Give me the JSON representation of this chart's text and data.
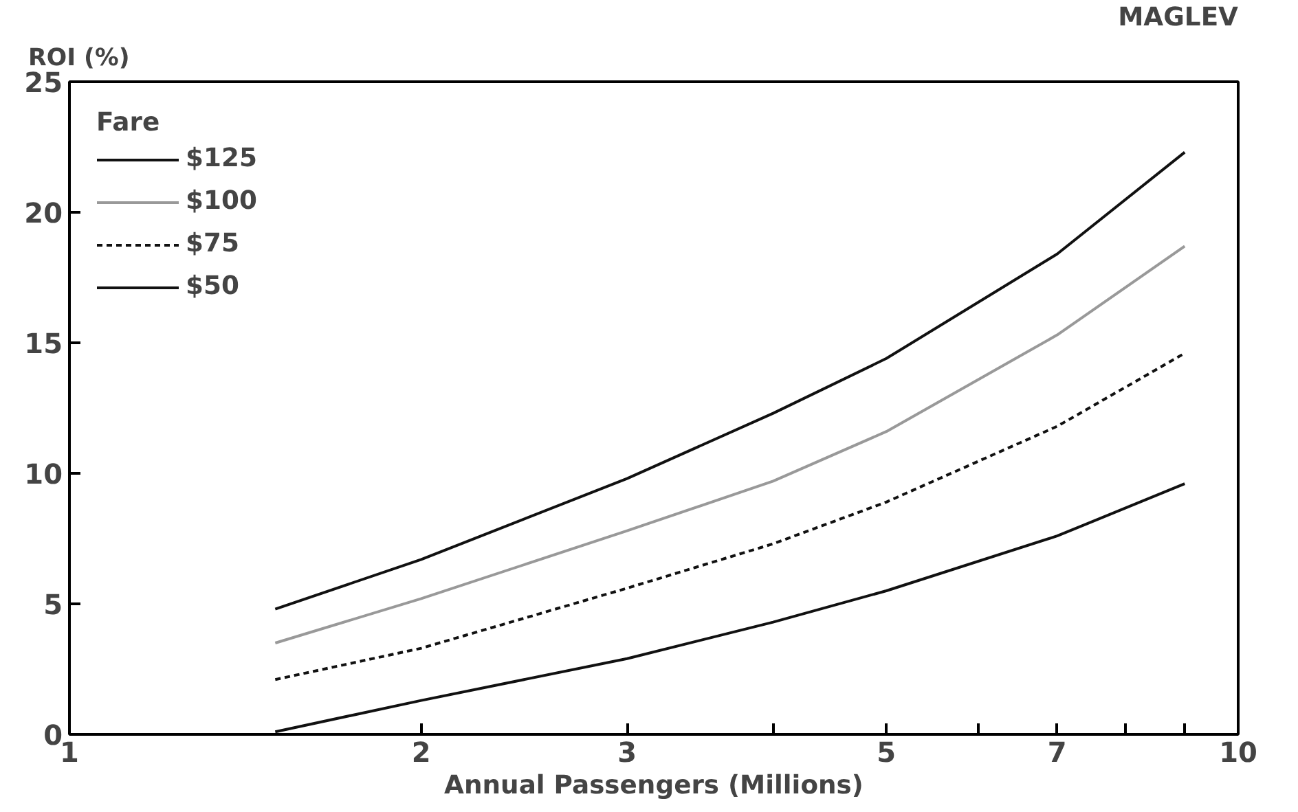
{
  "chart_data": {
    "type": "line",
    "title": "MAGLEV",
    "ylabel": "ROI (%)",
    "xlabel": "Annual Passengers (Millions)",
    "legend_title": "Fare",
    "legend": "top left",
    "grid": false,
    "log": "x",
    "x": [
      1.5,
      2,
      3,
      4,
      5,
      7,
      9
    ],
    "xlim": [
      1,
      10
    ],
    "xticks": [
      1,
      2,
      3,
      {
        "value": 4,
        "label": null
      },
      5,
      {
        "value": 6,
        "label": null
      },
      7,
      {
        "value": 8,
        "label": null
      },
      {
        "value": 9,
        "label": null
      },
      10
    ],
    "ylim": [
      0,
      25
    ],
    "yticks": [
      0,
      5,
      10,
      15,
      20,
      25
    ],
    "series": [
      {
        "name": "$125",
        "color": "#111111",
        "line_style": "solid",
        "values": [
          4.8,
          6.7,
          9.8,
          12.3,
          14.4,
          18.4,
          22.3
        ]
      },
      {
        "name": "$100",
        "color": "#999999",
        "line_style": "solid",
        "values": [
          3.5,
          5.2,
          7.8,
          9.7,
          11.6,
          15.3,
          18.7
        ]
      },
      {
        "name": "$75",
        "color": "#111111",
        "line_style": "dashed",
        "values": [
          2.1,
          3.3,
          5.6,
          7.3,
          8.9,
          11.8,
          14.6
        ]
      },
      {
        "name": "$50",
        "color": "#111111",
        "line_style": "solid",
        "values": [
          0.1,
          1.3,
          2.9,
          4.3,
          5.5,
          7.6,
          9.6
        ]
      }
    ]
  }
}
